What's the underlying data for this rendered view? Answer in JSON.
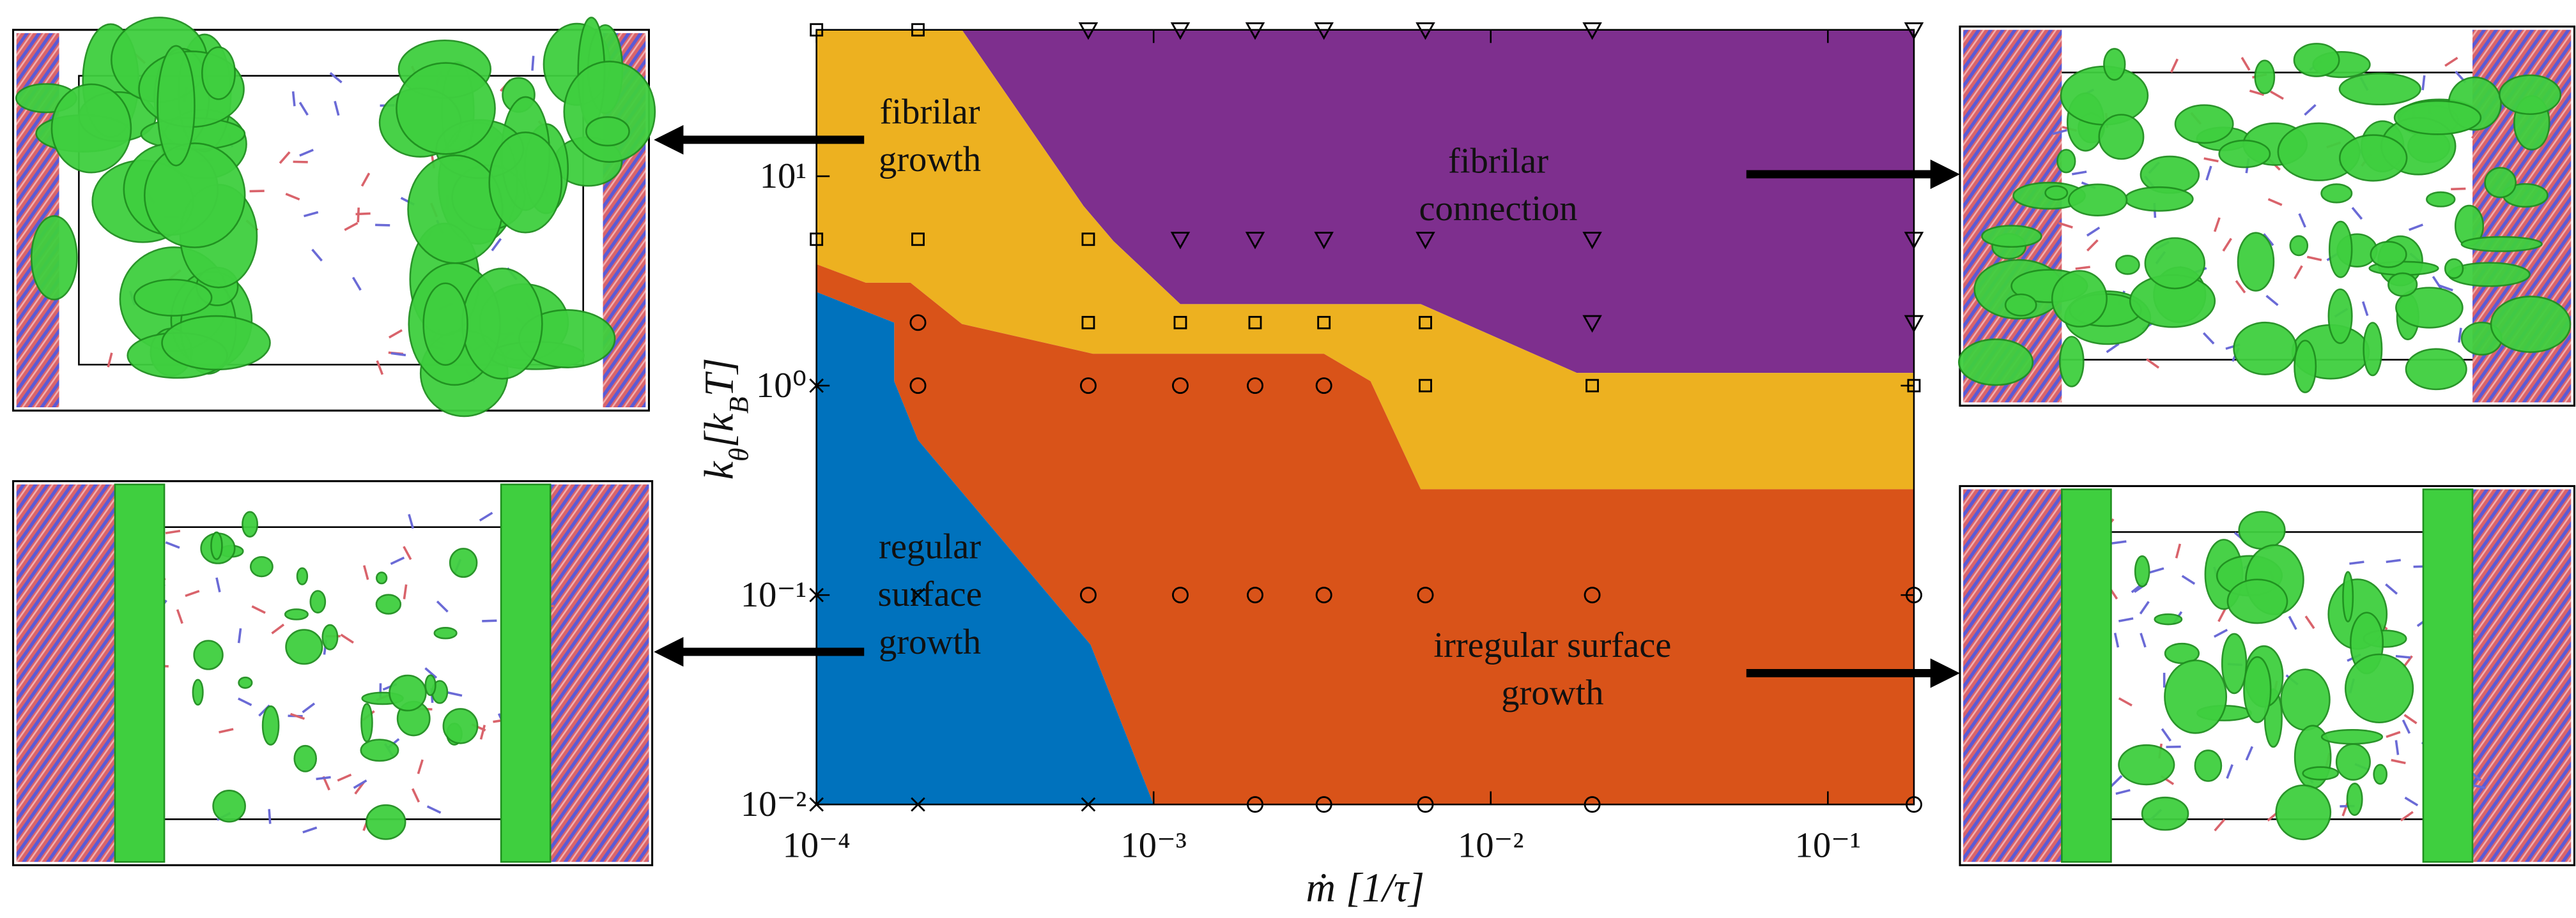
{
  "chart_data": {
    "type": "phase-diagram",
    "xscale": "log",
    "yscale": "log",
    "xlim": [
      0.0001,
      0.18
    ],
    "ylim": [
      0.01,
      50
    ],
    "xticks": [
      {
        "value": 0.0001,
        "label": "10⁻⁴"
      },
      {
        "value": 0.001,
        "label": "10⁻³"
      },
      {
        "value": 0.01,
        "label": "10⁻²"
      },
      {
        "value": 0.1,
        "label": "10⁻¹"
      }
    ],
    "yticks": [
      {
        "value": 0.01,
        "label": "10⁻²"
      },
      {
        "value": 0.1,
        "label": "10⁻¹"
      },
      {
        "value": 1,
        "label": "10⁰"
      },
      {
        "value": 10,
        "label": "10¹"
      }
    ],
    "xlabel": "ṁ [1/τ]",
    "ylabel": [
      {
        "text": "k"
      },
      {
        "text": "θ",
        "sub": true
      },
      {
        "text": "[k"
      },
      {
        "text": "B",
        "sub": true
      },
      {
        "text": "T]"
      }
    ],
    "regions": [
      {
        "label": [
          "fibrilar",
          "connection"
        ],
        "color": "#7e2f8e",
        "x": [
          0.00027,
          0.18,
          0.18,
          0.018,
          0.0062,
          0.0012,
          0.00076,
          0.00062
        ],
        "y": [
          50,
          50,
          1.15,
          1.15,
          2.45,
          2.45,
          4.9,
          7.2
        ]
      },
      {
        "label": [
          "fibrilar",
          "growth"
        ],
        "color": "#edb120",
        "x": [
          0.0001,
          0.00027,
          0.00062,
          0.00076,
          0.0012,
          0.0062,
          0.018,
          0.18,
          0.18,
          0.0062,
          0.0044,
          0.0032,
          0.00066,
          0.00027,
          0.00019,
          0.00014,
          0.0001
        ],
        "y": [
          50,
          50,
          7.2,
          4.9,
          2.45,
          2.45,
          1.15,
          1.15,
          0.32,
          0.32,
          1.05,
          1.42,
          1.42,
          1.97,
          3.1,
          3.1,
          3.8
        ]
      },
      {
        "label": [
          "irregular surface",
          "growth"
        ],
        "color": "#d95319",
        "x": [
          0.0001,
          0.00014,
          0.00019,
          0.00027,
          0.00066,
          0.0032,
          0.0044,
          0.0062,
          0.18,
          0.18,
          0.001,
          0.00065,
          0.0002,
          0.00017,
          0.00017,
          0.0001
        ],
        "y": [
          3.8,
          3.1,
          3.1,
          1.97,
          1.42,
          1.42,
          1.05,
          0.32,
          0.32,
          0.01,
          0.01,
          0.058,
          0.55,
          1.05,
          2.0,
          2.8
        ]
      },
      {
        "label": [
          "regular",
          "surface",
          "growth"
        ],
        "color": "#0072bd",
        "x": [
          0.0001,
          0.00017,
          0.00017,
          0.0002,
          0.00065,
          0.001,
          0.0001
        ],
        "y": [
          2.8,
          2.0,
          1.05,
          0.55,
          0.058,
          0.01,
          0.01
        ]
      }
    ],
    "marker_color": "#000000",
    "series": [
      {
        "marker": "cross",
        "x": [
          0.0001,
          0.0001,
          0.0002,
          0.0001,
          0.0002,
          0.00064
        ],
        "y": [
          1,
          0.1,
          0.1,
          0.01,
          0.01,
          0.01
        ]
      },
      {
        "marker": "circle",
        "x": [
          0.0002,
          0.0002,
          0.00064,
          0.0012,
          0.002,
          0.0032,
          0.00064,
          0.0012,
          0.002,
          0.0032,
          0.0064,
          0.02,
          0.18,
          0.002,
          0.0032,
          0.0064,
          0.02,
          0.18
        ],
        "y": [
          2,
          1,
          1,
          1,
          1,
          1,
          0.1,
          0.1,
          0.1,
          0.1,
          0.1,
          0.1,
          0.1,
          0.01,
          0.01,
          0.01,
          0.01,
          0.01
        ]
      },
      {
        "marker": "square",
        "x": [
          0.0001,
          0.0002,
          0.0001,
          0.0002,
          0.00064,
          0.00064,
          0.0012,
          0.002,
          0.0032,
          0.0064,
          0.0064,
          0.02,
          0.18
        ],
        "y": [
          50,
          50,
          5,
          5,
          5,
          2,
          2,
          2,
          2,
          2,
          1,
          1,
          1
        ]
      },
      {
        "marker": "triangle",
        "x": [
          0.00064,
          0.0012,
          0.002,
          0.0032,
          0.0064,
          0.02,
          0.18,
          0.0012,
          0.002,
          0.0032,
          0.0064,
          0.02,
          0.18,
          0.02,
          0.18
        ],
        "y": [
          50,
          50,
          50,
          50,
          50,
          50,
          50,
          5,
          5,
          5,
          5,
          5,
          5,
          2,
          2
        ]
      }
    ]
  }
}
